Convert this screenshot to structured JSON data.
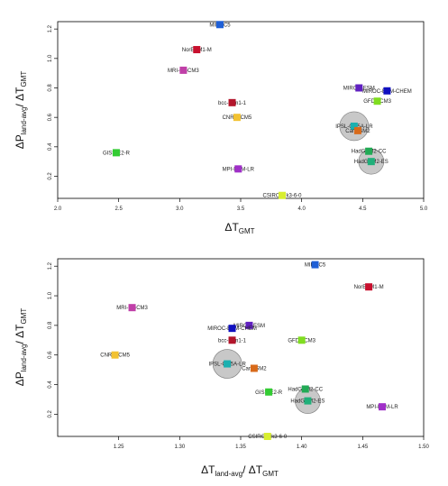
{
  "chart_data": [
    {
      "type": "scatter",
      "xlabel": "ΔT",
      "xlabel_sub": "GMT",
      "ylabel": "ΔP",
      "ylabel_sub": "land-avg",
      "ylabel_tail": "/ ΔT",
      "ylabel_tail_sub": "GMT",
      "xlim": [
        2.0,
        5.0
      ],
      "ylim": [
        0.05,
        1.25
      ],
      "xticks": [
        "2.0",
        "2.5",
        "3.0",
        "3.5",
        "4.0",
        "4.5",
        "5.0"
      ],
      "yticks": [
        "0.2",
        "0.4",
        "0.6",
        "0.8",
        "1.0",
        "1.2"
      ],
      "points": [
        {
          "label": "MIROC5",
          "x": 3.33,
          "y": 1.23,
          "color": "#1f5fd6"
        },
        {
          "label": "NorESM1-M",
          "x": 3.14,
          "y": 1.06,
          "color": "#c8102e"
        },
        {
          "label": "MRI-CGCM3",
          "x": 3.03,
          "y": 0.92,
          "color": "#c040a8"
        },
        {
          "label": "bcc-csm1-1",
          "x": 3.43,
          "y": 0.7,
          "color": "#b3152b"
        },
        {
          "label": "CNRM-CM5",
          "x": 3.47,
          "y": 0.6,
          "color": "#f2c232"
        },
        {
          "label": "GISS-E2-R",
          "x": 2.48,
          "y": 0.36,
          "color": "#33cc33"
        },
        {
          "label": "MPI-ESM-LR",
          "x": 3.48,
          "y": 0.25,
          "color": "#a030c8"
        },
        {
          "label": "CSIRO-Mk3-6-0",
          "x": 3.84,
          "y": 0.07,
          "color": "#d8ee30"
        },
        {
          "label": "MIROC-ESM",
          "x": 4.47,
          "y": 0.8,
          "color": "#6020c0"
        },
        {
          "label": "MIROC-ESM-CHEM",
          "x": 4.7,
          "y": 0.78,
          "color": "#1010c0"
        },
        {
          "label": "GFDL-CM3",
          "x": 4.62,
          "y": 0.71,
          "color": "#80dd20"
        },
        {
          "label": "IPSL-CM5A-LR",
          "x": 4.43,
          "y": 0.54,
          "color": "#1ab0b0",
          "bubble": 16
        },
        {
          "label": "CanESM2",
          "x": 4.46,
          "y": 0.51,
          "color": "#d86a1a"
        },
        {
          "label": "HadGEM2-CC",
          "x": 4.55,
          "y": 0.37,
          "color": "#22aa55"
        },
        {
          "label": "HadGEM2-ES",
          "x": 4.57,
          "y": 0.3,
          "color": "#20b07a",
          "bubble": 14
        }
      ]
    },
    {
      "type": "scatter",
      "xlabel": "ΔT",
      "xlabel_sub": "land-avg",
      "xlabel_tail": "/ ΔT",
      "xlabel_tail_sub": "GMT",
      "ylabel": "ΔP",
      "ylabel_sub": "land-avg",
      "ylabel_tail": "/ ΔT",
      "ylabel_tail_sub": "GMT",
      "xlim": [
        1.2,
        1.5
      ],
      "ylim": [
        0.05,
        1.25
      ],
      "xticks": [
        "1.25",
        "1.30",
        "1.35",
        "1.40",
        "1.45",
        "1.50"
      ],
      "yticks": [
        "0.2",
        "0.4",
        "0.6",
        "0.8",
        "1.0",
        "1.2"
      ],
      "points": [
        {
          "label": "MIROC5",
          "x": 1.411,
          "y": 1.21,
          "color": "#1f5fd6"
        },
        {
          "label": "NorESM1-M",
          "x": 1.455,
          "y": 1.06,
          "color": "#c8102e"
        },
        {
          "label": "MRI-CGCM3",
          "x": 1.261,
          "y": 0.92,
          "color": "#c040a8"
        },
        {
          "label": "MIROC-ESM",
          "x": 1.357,
          "y": 0.8,
          "color": "#6020c0"
        },
        {
          "label": "MIROC-ESM-CHEM",
          "x": 1.343,
          "y": 0.78,
          "color": "#1010c0"
        },
        {
          "label": "bcc-csm1-1",
          "x": 1.343,
          "y": 0.7,
          "color": "#b3152b"
        },
        {
          "label": "GFDL-CM3",
          "x": 1.4,
          "y": 0.7,
          "color": "#80dd20"
        },
        {
          "label": "CNRM-CM5",
          "x": 1.247,
          "y": 0.6,
          "color": "#f2c232"
        },
        {
          "label": "IPSL-CM5A-LR",
          "x": 1.339,
          "y": 0.54,
          "color": "#1ab0b0",
          "bubble": 16
        },
        {
          "label": "CanESM2",
          "x": 1.361,
          "y": 0.51,
          "color": "#d86a1a"
        },
        {
          "label": "HadGEM2-CC",
          "x": 1.403,
          "y": 0.37,
          "color": "#22aa55"
        },
        {
          "label": "GISS-E2-R",
          "x": 1.373,
          "y": 0.35,
          "color": "#33cc33"
        },
        {
          "label": "HadGEM2-ES",
          "x": 1.405,
          "y": 0.29,
          "color": "#20b07a",
          "bubble": 14
        },
        {
          "label": "MPI-ESM-LR",
          "x": 1.466,
          "y": 0.25,
          "color": "#a030c8"
        },
        {
          "label": "CSIRO-Mk3-6-0",
          "x": 1.372,
          "y": 0.05,
          "color": "#d8ee30"
        }
      ]
    }
  ]
}
